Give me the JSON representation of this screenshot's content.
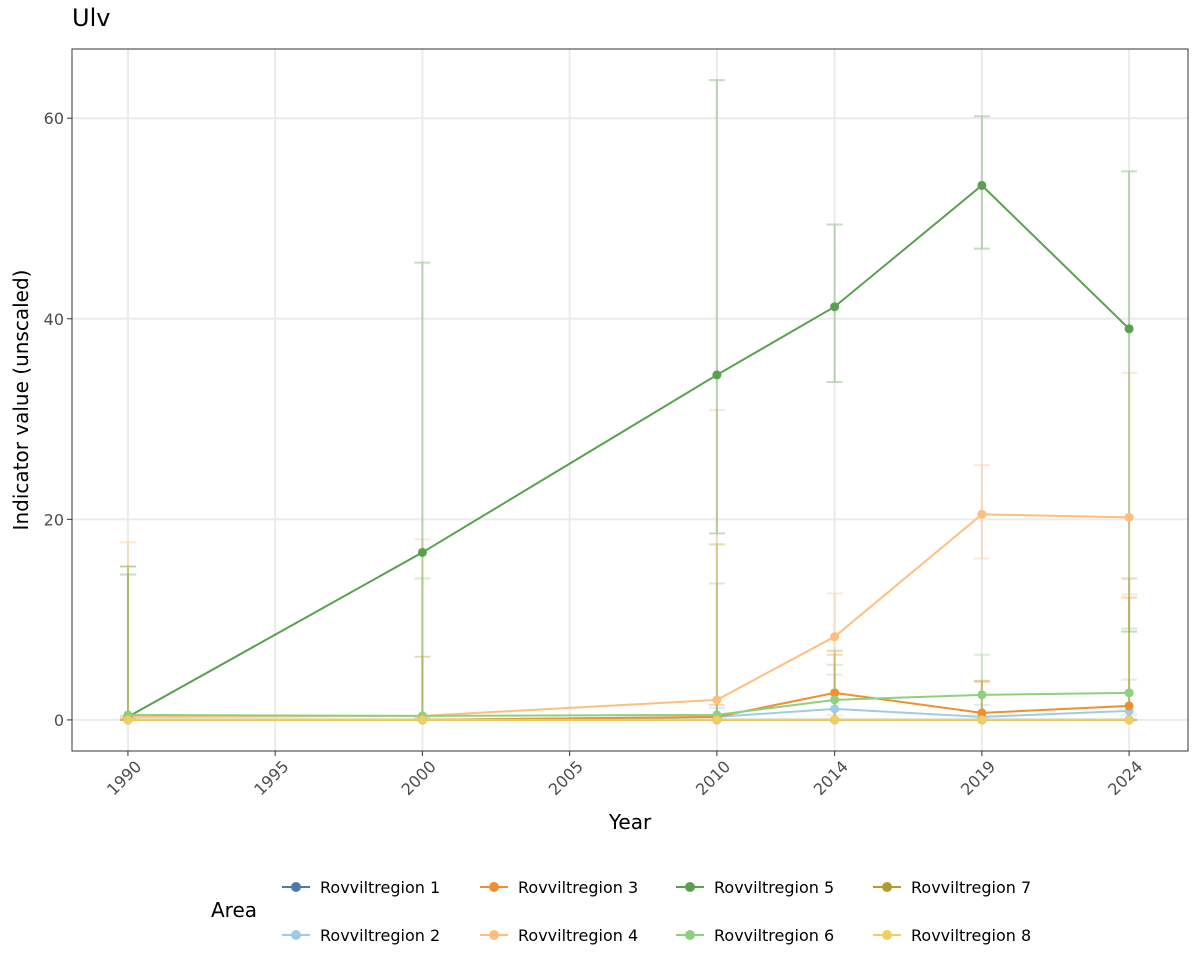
{
  "chart_data": {
    "type": "line",
    "title": "Ulv",
    "xlabel": "Year",
    "ylabel": "Indicator value (unscaled)",
    "x_ticks": [
      1990,
      1995,
      2000,
      2005,
      2010,
      2014,
      2019,
      2024
    ],
    "y_ticks": [
      0,
      20,
      40,
      60
    ],
    "xlim": [
      1988.1,
      2026
    ],
    "ylim": [
      -3.1,
      66.9
    ],
    "grid": true,
    "legend_title": "Area",
    "legend_position": "bottom",
    "x": [
      1990,
      2000,
      2010,
      2014,
      2019,
      2024
    ],
    "series": [
      {
        "name": "Rovviltregion 1",
        "color": "#4e79a7",
        "values": [
          0,
          0,
          0,
          0,
          0,
          0
        ],
        "lower": [
          0,
          0,
          0,
          0,
          0,
          0
        ],
        "upper": [
          0,
          0,
          0,
          0,
          0,
          0
        ]
      },
      {
        "name": "Rovviltregion 2",
        "color": "#a0cbe8",
        "values": [
          0,
          0,
          0.3,
          1.1,
          0.3,
          0.9
        ],
        "lower": [
          0,
          0,
          0,
          0,
          0,
          0
        ],
        "upper": [
          0.2,
          0.2,
          1.2,
          4.5,
          1.5,
          4.0
        ]
      },
      {
        "name": "Rovviltregion 3",
        "color": "#f28e2b",
        "values": [
          0,
          0,
          0.3,
          2.7,
          0.7,
          1.4
        ],
        "lower": [
          0,
          0,
          0,
          0,
          0,
          0
        ],
        "upper": [
          0.4,
          0.4,
          1.5,
          6.5,
          3.8,
          12.2
        ]
      },
      {
        "name": "Rovviltregion 4",
        "color": "#ffbe7d",
        "values": [
          0.3,
          0.4,
          2.0,
          8.3,
          20.5,
          20.2
        ],
        "lower": [
          0,
          0,
          0,
          0,
          16.1,
          12.5
        ],
        "upper": [
          17.7,
          18.0,
          30.9,
          12.6,
          25.4,
          34.6
        ]
      },
      {
        "name": "Rovviltregion 5",
        "color": "#59a14f",
        "values": [
          0.3,
          16.7,
          34.4,
          41.2,
          53.3,
          39.0
        ],
        "lower": [
          0,
          0,
          18.6,
          33.7,
          47.0,
          8.8
        ],
        "upper": [
          14.5,
          45.6,
          63.8,
          49.4,
          60.2,
          54.7
        ]
      },
      {
        "name": "Rovviltregion 6",
        "color": "#8cd17d",
        "values": [
          0.5,
          0.4,
          0.5,
          2.0,
          2.5,
          2.7
        ],
        "lower": [
          0,
          0,
          0,
          0,
          0,
          0
        ],
        "upper": [
          15.3,
          14.1,
          13.6,
          5.5,
          6.5,
          9.1
        ]
      },
      {
        "name": "Rovviltregion 7",
        "color": "#b6992d",
        "values": [
          0,
          0,
          0,
          0,
          0,
          0
        ],
        "lower": [
          0,
          0,
          0,
          0,
          0,
          0
        ],
        "upper": [
          15.3,
          6.3,
          17.5,
          6.9,
          3.9,
          14.1
        ]
      },
      {
        "name": "Rovviltregion 8",
        "color": "#f1ce63",
        "values": [
          0,
          0,
          0,
          0,
          0,
          0
        ],
        "lower": [
          0,
          0,
          0,
          0,
          0,
          0
        ],
        "upper": [
          0.2,
          0.2,
          0.4,
          0.5,
          0.3,
          0.5
        ]
      }
    ]
  }
}
